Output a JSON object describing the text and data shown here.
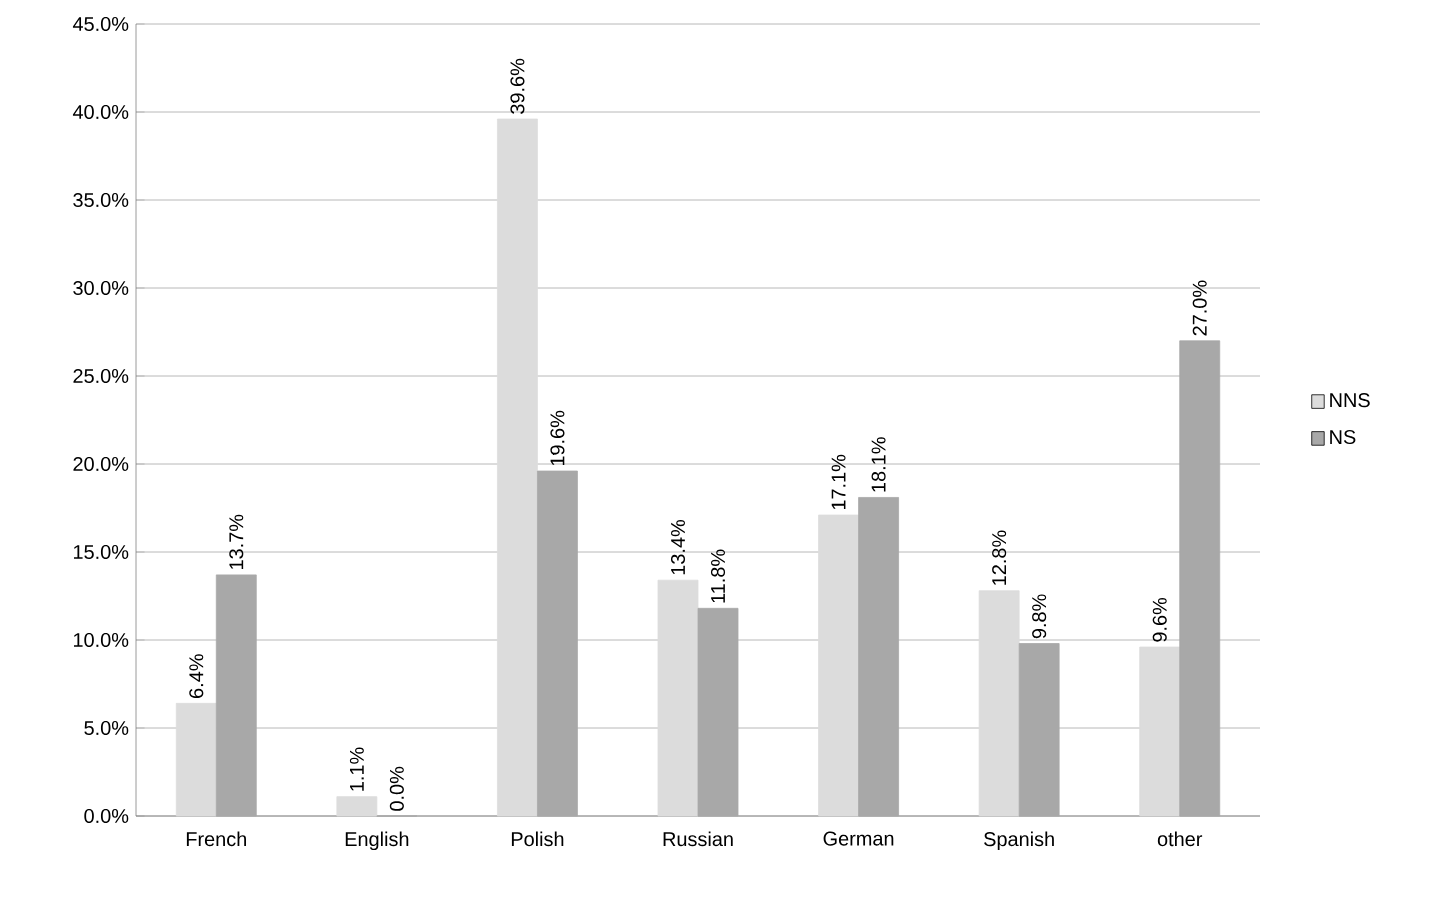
{
  "chart_data": {
    "type": "bar",
    "categories": [
      "French",
      "English",
      "Polish",
      "Russian",
      "German",
      "Spanish",
      "other"
    ],
    "series": [
      {
        "name": "NNS",
        "color": "#dcdcdc",
        "values": [
          6.4,
          1.1,
          39.6,
          13.4,
          17.1,
          12.8,
          9.6
        ],
        "value_labels": [
          "6.4%",
          "1.1%",
          "39.6%",
          "13.4%",
          "17.1%",
          "12.8%",
          "9.6%"
        ]
      },
      {
        "name": "NS",
        "color": "#a8a8a8",
        "values": [
          13.7,
          0.0,
          19.6,
          11.8,
          18.1,
          9.8,
          27.0
        ],
        "value_labels": [
          "13.7%",
          "0.0%",
          "19.6%",
          "11.8%",
          "18.1%",
          "9.8%",
          "27.0%"
        ]
      }
    ],
    "ylim": [
      0,
      45
    ],
    "yticks": [
      {
        "value": 0,
        "label": "0.0%"
      },
      {
        "value": 5,
        "label": "5.0%"
      },
      {
        "value": 10,
        "label": "10.0%"
      },
      {
        "value": 15,
        "label": "15.0%"
      },
      {
        "value": 20,
        "label": "20.0%"
      },
      {
        "value": 25,
        "label": "25.0%"
      },
      {
        "value": 30,
        "label": "30.0%"
      },
      {
        "value": 35,
        "label": "35.0%"
      },
      {
        "value": 40,
        "label": "40.0%"
      },
      {
        "value": 45,
        "label": "45.0%"
      }
    ],
    "grid": "y",
    "legend": "right"
  }
}
